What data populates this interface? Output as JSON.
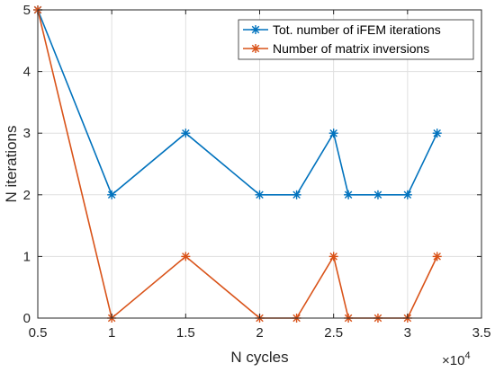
{
  "chart_data": {
    "type": "line",
    "xlabel": "N cycles",
    "ylabel": "N iterations",
    "x_exponent_label": "×10",
    "x_exponent_power": "4",
    "xlim": [
      0.5,
      3.5
    ],
    "ylim": [
      0,
      5
    ],
    "xticks": [
      0.5,
      1,
      1.5,
      2,
      2.5,
      3,
      3.5
    ],
    "xtick_labels": [
      "0.5",
      "1",
      "1.5",
      "2",
      "2.5",
      "3",
      "3.5"
    ],
    "yticks": [
      0,
      1,
      2,
      3,
      4,
      5
    ],
    "ytick_labels": [
      "0",
      "1",
      "2",
      "3",
      "4",
      "5"
    ],
    "grid": true,
    "legend_position": "top-right",
    "series": [
      {
        "name": "Tot. number of iFEM iterations",
        "color": "#0072BD",
        "marker": "asterisk",
        "x": [
          0.5,
          1,
          1.5,
          2,
          2.25,
          2.5,
          2.6,
          2.8,
          3,
          3.2
        ],
        "y": [
          5,
          2,
          3,
          2,
          2,
          3,
          2,
          2,
          2,
          3
        ]
      },
      {
        "name": "Number of matrix inversions",
        "color": "#D95319",
        "marker": "asterisk",
        "x": [
          0.5,
          1,
          1.5,
          2,
          2.25,
          2.5,
          2.6,
          2.8,
          3,
          3.2
        ],
        "y": [
          5,
          0,
          1,
          0,
          0,
          1,
          0,
          0,
          0,
          1
        ]
      }
    ]
  }
}
